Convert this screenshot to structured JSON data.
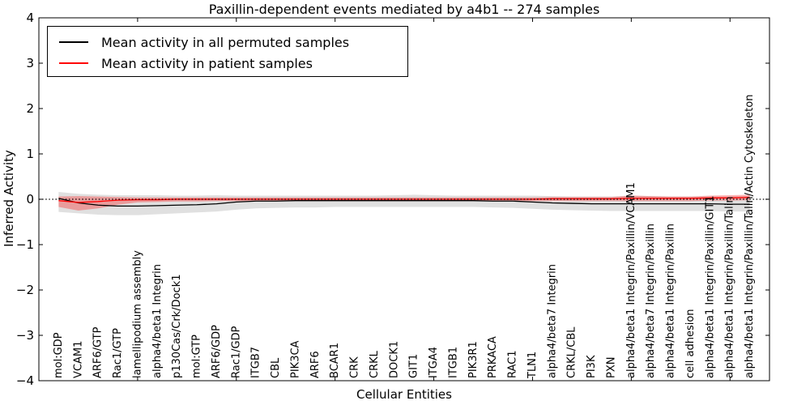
{
  "title": "Paxillin-dependent events mediated by a4b1 -- 274 samples",
  "legend": {
    "entries": [
      {
        "label": "Mean activity in all permuted samples",
        "color": "#000000"
      },
      {
        "label": "Mean activity in patient samples",
        "color": "#ff0000"
      }
    ]
  },
  "chart_data": {
    "type": "line",
    "title": "Paxillin-dependent events mediated by a4b1 -- 274 samples",
    "xlabel": "Cellular Entities",
    "ylabel": "Inferred Activity",
    "ylim": [
      -4,
      4
    ],
    "yticks": [
      -4,
      -3,
      -2,
      -1,
      0,
      1,
      2,
      3,
      4
    ],
    "ytick_labels": [
      "−4",
      "−3",
      "−2",
      "−1",
      "0",
      "1",
      "2",
      "3",
      "4"
    ],
    "xlim": [
      0,
      37
    ],
    "xticks_numeric": [
      5,
      10,
      15,
      20,
      25,
      30,
      35
    ],
    "grid": false,
    "legend_position": "upper left",
    "zero_line": {
      "y": 0,
      "style": "dotted",
      "color": "#000000"
    },
    "categories": [
      "mol:GDP",
      "VCAM1",
      "ARF6/GTP",
      "Rac1/GTP",
      "lamellipodium assembly",
      "alpha4/beta1 Integrin",
      "p130Cas/Crk/Dock1",
      "mol:GTP",
      "ARF6/GDP",
      "Rac1/GDP",
      "ITGB7",
      "CBL",
      "PIK3CA",
      "ARF6",
      "BCAR1",
      "CRK",
      "CRKL",
      "DOCK1",
      "GIT1",
      "ITGA4",
      "ITGB1",
      "PIK3R1",
      "PRKACA",
      "RAC1",
      "TLN1",
      "alpha4/beta7 Integrin",
      "CRKL/CBL",
      "PI3K",
      "PXN",
      "alpha4/beta1 Integrin/Paxillin/VCAM1",
      "alpha4/beta7 Integrin/Paxillin",
      "alpha4/beta1 Integrin/Paxillin",
      "cell adhesion",
      "alpha4/beta1 Integrin/Paxillin/GIT1",
      "alpha4/beta1 Integrin/Paxillin/Talin",
      "alpha4/beta1 Integrin/Paxillin/Talin/Actin Cytoskeleton"
    ],
    "series": [
      {
        "name": "Mean activity in all permuted samples",
        "color": "#000000",
        "line_width": 1.3,
        "band_color": "#999999",
        "band_opacity": 0.3,
        "values": [
          0.02,
          -0.08,
          -0.13,
          -0.15,
          -0.15,
          -0.14,
          -0.13,
          -0.12,
          -0.1,
          -0.06,
          -0.04,
          -0.04,
          -0.03,
          -0.03,
          -0.03,
          -0.03,
          -0.03,
          -0.03,
          -0.03,
          -0.03,
          -0.03,
          -0.03,
          -0.04,
          -0.04,
          -0.06,
          -0.08,
          -0.09,
          -0.1,
          -0.1,
          -0.1,
          -0.1,
          -0.1,
          -0.1,
          -0.1,
          -0.11,
          -0.11
        ],
        "band_upper": [
          0.16,
          0.12,
          0.1,
          0.09,
          0.09,
          0.09,
          0.08,
          0.08,
          0.09,
          0.08,
          0.08,
          0.08,
          0.08,
          0.08,
          0.08,
          0.08,
          0.08,
          0.09,
          0.1,
          0.09,
          0.08,
          0.08,
          0.08,
          0.08,
          0.08,
          0.07,
          0.06,
          0.06,
          0.06,
          0.08,
          0.07,
          0.06,
          0.06,
          0.06,
          0.06,
          0.07
        ],
        "band_lower": [
          -0.28,
          -0.31,
          -0.34,
          -0.35,
          -0.35,
          -0.33,
          -0.31,
          -0.29,
          -0.27,
          -0.23,
          -0.2,
          -0.19,
          -0.18,
          -0.18,
          -0.17,
          -0.17,
          -0.17,
          -0.17,
          -0.17,
          -0.17,
          -0.17,
          -0.17,
          -0.18,
          -0.19,
          -0.21,
          -0.23,
          -0.24,
          -0.25,
          -0.26,
          -0.26,
          -0.26,
          -0.26,
          -0.26,
          -0.26,
          -0.27,
          -0.27
        ]
      },
      {
        "name": "Mean activity in patient samples",
        "color": "#ff0000",
        "line_width": 1.3,
        "band_color": "#ff0000",
        "band_opacity": 0.3,
        "values": [
          -0.03,
          -0.07,
          -0.05,
          -0.02,
          -0.01,
          -0.01,
          0.0,
          0.0,
          0.0,
          0.0,
          0.0,
          0.0,
          0.0,
          0.0,
          0.0,
          0.0,
          0.0,
          0.0,
          0.0,
          0.0,
          0.0,
          0.0,
          0.0,
          0.0,
          0.0,
          0.01,
          0.01,
          0.01,
          0.01,
          0.02,
          0.02,
          0.02,
          0.02,
          0.03,
          0.03,
          0.04
        ],
        "band_upper": [
          0.06,
          0.07,
          0.06,
          0.05,
          0.04,
          0.04,
          0.04,
          0.04,
          0.04,
          0.04,
          0.04,
          0.04,
          0.04,
          0.04,
          0.04,
          0.04,
          0.04,
          0.04,
          0.04,
          0.04,
          0.04,
          0.04,
          0.04,
          0.04,
          0.04,
          0.05,
          0.05,
          0.05,
          0.05,
          0.08,
          0.07,
          0.06,
          0.06,
          0.08,
          0.09,
          0.1
        ],
        "band_lower": [
          -0.17,
          -0.25,
          -0.2,
          -0.12,
          -0.07,
          -0.06,
          -0.05,
          -0.05,
          -0.04,
          -0.04,
          -0.04,
          -0.04,
          -0.04,
          -0.04,
          -0.04,
          -0.04,
          -0.04,
          -0.04,
          -0.04,
          -0.04,
          -0.04,
          -0.04,
          -0.04,
          -0.04,
          -0.04,
          -0.04,
          -0.04,
          -0.04,
          -0.04,
          -0.04,
          -0.04,
          -0.04,
          -0.04,
          -0.03,
          -0.03,
          -0.02
        ]
      }
    ]
  }
}
